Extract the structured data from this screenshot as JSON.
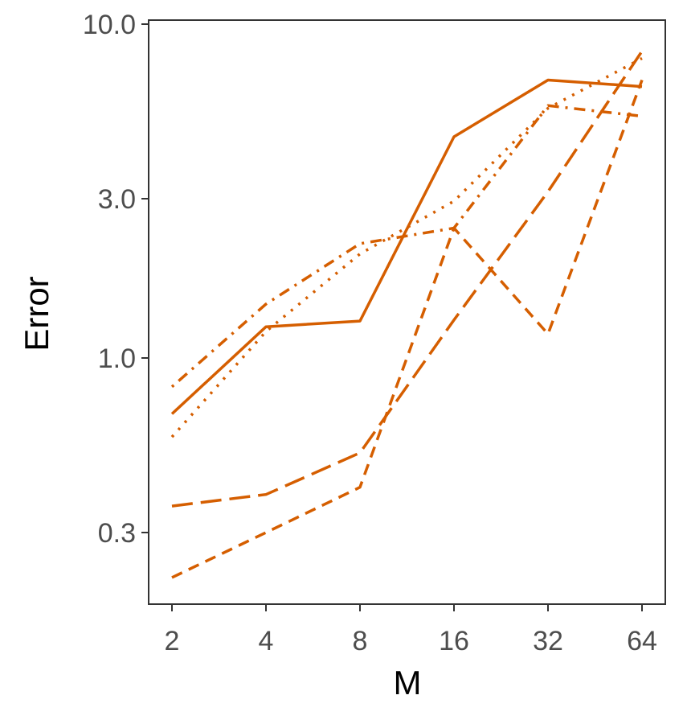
{
  "chart_data": {
    "type": "line",
    "xlabel": "M",
    "ylabel": "Error",
    "x_scale": "log2",
    "y_scale": "log10",
    "x": [
      2,
      4,
      8,
      16,
      32,
      64
    ],
    "x_tick_labels": [
      "2",
      "4",
      "8",
      "16",
      "32",
      "64"
    ],
    "y_ticks": [
      0.3,
      1.0,
      3.0,
      10.0
    ],
    "y_tick_labels": [
      "0.3",
      "1.0",
      "3.0",
      "10.0"
    ],
    "ylim": [
      0.2,
      10.0
    ],
    "grid": false,
    "legend": "none",
    "color": "#D55E00",
    "series": [
      {
        "linetype": "solid",
        "values": [
          0.68,
          1.24,
          1.29,
          4.6,
          6.8,
          6.5
        ]
      },
      {
        "linetype": "dotted",
        "values": [
          0.58,
          1.2,
          2.05,
          2.95,
          5.6,
          7.9
        ]
      },
      {
        "linetype": "dotdash",
        "values": [
          0.82,
          1.45,
          2.2,
          2.45,
          5.7,
          5.3
        ]
      },
      {
        "linetype": "longdash",
        "values": [
          0.36,
          0.39,
          0.52,
          1.3,
          3.15,
          8.3
        ]
      },
      {
        "linetype": "dashed",
        "values": [
          0.22,
          0.3,
          0.41,
          2.45,
          1.18,
          6.8
        ]
      }
    ]
  }
}
